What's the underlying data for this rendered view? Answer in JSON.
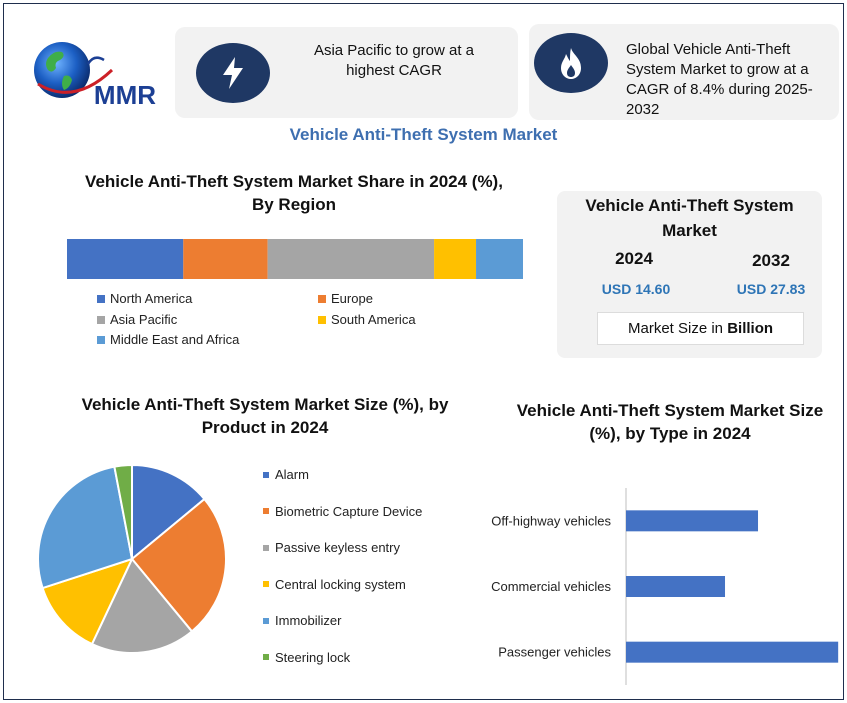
{
  "brand": {
    "logo_text": "MMR"
  },
  "cards": [
    {
      "icon": "lightning-bolt-icon",
      "text": "Asia Pacific to grow at a highest CAGR"
    },
    {
      "icon": "flame-icon",
      "text": "Global Vehicle Anti-Theft System Market to grow at a CAGR of 8.4% during 2025-2032"
    }
  ],
  "main_title": "Vehicle Anti-Theft System Market",
  "market_box": {
    "title": "Vehicle Anti-Theft System Market",
    "year1": "2024",
    "value1": "USD 14.60",
    "year2": "2032",
    "value2": "USD 27.83",
    "note_prefix": "Market Size in ",
    "note_bold": "Billion"
  },
  "colors": {
    "navy": "#1f3864",
    "accent_blue": "#2e75b6"
  },
  "chart_data": [
    {
      "type": "bar",
      "orientation": "stacked-horizontal",
      "title": "Vehicle Anti-Theft System Market Share in 2024 (%), By Region",
      "series": [
        {
          "name": "North America",
          "value": 25.5,
          "color": "#4472c4"
        },
        {
          "name": "Europe",
          "value": 18.5,
          "color": "#ed7d31"
        },
        {
          "name": "Asia Pacific",
          "value": 36.5,
          "color": "#a5a5a5"
        },
        {
          "name": "South America",
          "value": 9.2,
          "color": "#ffc000"
        },
        {
          "name": "Middle East and Africa",
          "value": 10.3,
          "color": "#5b9bd5"
        }
      ],
      "legend": "bottom"
    },
    {
      "type": "pie",
      "title": "Vehicle Anti-Theft System Market Size (%), by Product in 2024",
      "slices": [
        {
          "name": "Alarm",
          "value": 14,
          "color": "#4472c4"
        },
        {
          "name": "Biometric Capture Device",
          "value": 25,
          "color": "#ed7d31"
        },
        {
          "name": "Passive keyless entry",
          "value": 18,
          "color": "#a5a5a5"
        },
        {
          "name": "Central locking system",
          "value": 13,
          "color": "#ffc000"
        },
        {
          "name": "Immobilizer",
          "value": 27,
          "color": "#5b9bd5"
        },
        {
          "name": "Steering lock",
          "value": 3,
          "color": "#70ad47"
        }
      ],
      "legend": "right"
    },
    {
      "type": "bar",
      "orientation": "horizontal",
      "title": "Vehicle Anti-Theft System Market Size (%), by Type in 2024",
      "categories": [
        "Off-highway vehicles",
        "Commercial vehicles",
        "Passenger vehicles"
      ],
      "values": [
        28,
        21,
        45
      ],
      "xlim": [
        0,
        60
      ],
      "color": "#4472c4"
    }
  ]
}
